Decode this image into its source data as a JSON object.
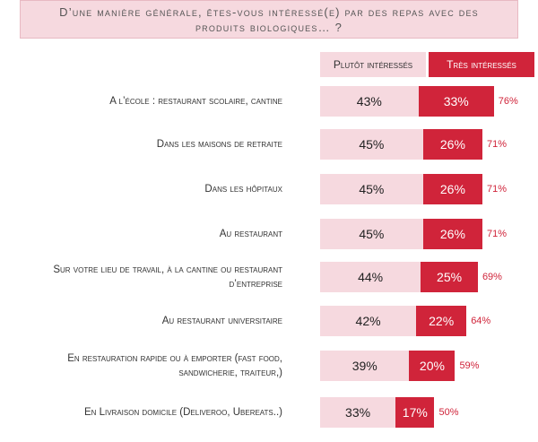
{
  "title": "D’une manière générale, êtes-vous intéressé(e) par des repas avec des produits biologiques… ?",
  "legend": {
    "plutot": "Plutôt intéressés",
    "tres": "Très intéressés"
  },
  "colors": {
    "plutot": "#f6d9df",
    "tres": "#d0243a"
  },
  "chart_data": {
    "type": "bar",
    "orientation": "horizontal-stacked",
    "title": "D’une manière générale, êtes-vous intéressé(e) par des repas avec des produits biologiques… ?",
    "categories": [
      "A l’école : restaurant scolaire, cantine",
      "Dans les maisons de retraite",
      "Dans les hôpitaux",
      "Au restaurant",
      "Sur votre lieu de travail, à la cantine ou restaurant d’entreprise",
      "Au restaurant universitaire",
      "En restauration rapide ou à emporter (fast food, sandwicherie, traiteur,)",
      "En Livraison domicile (Deliveroo, Ubereats..)"
    ],
    "series": [
      {
        "name": "Plutôt intéressés",
        "values": [
          43,
          45,
          45,
          45,
          44,
          42,
          39,
          33
        ]
      },
      {
        "name": "Très intéressés",
        "values": [
          33,
          26,
          26,
          26,
          25,
          22,
          20,
          17
        ]
      }
    ],
    "totals": [
      76,
      71,
      71,
      71,
      69,
      64,
      59,
      50
    ],
    "value_labels": {
      "plutot": [
        "43%",
        "45%",
        "45%",
        "45%",
        "44%",
        "42%",
        "39%",
        "33%"
      ],
      "tres": [
        "33%",
        "26%",
        "26%",
        "26%",
        "25%",
        "22%",
        "20%",
        "17%"
      ],
      "totals": [
        "76%",
        "71%",
        "71%",
        "71%",
        "69%",
        "64%",
        "59%",
        "50%"
      ]
    },
    "legend_position": "top-right"
  }
}
